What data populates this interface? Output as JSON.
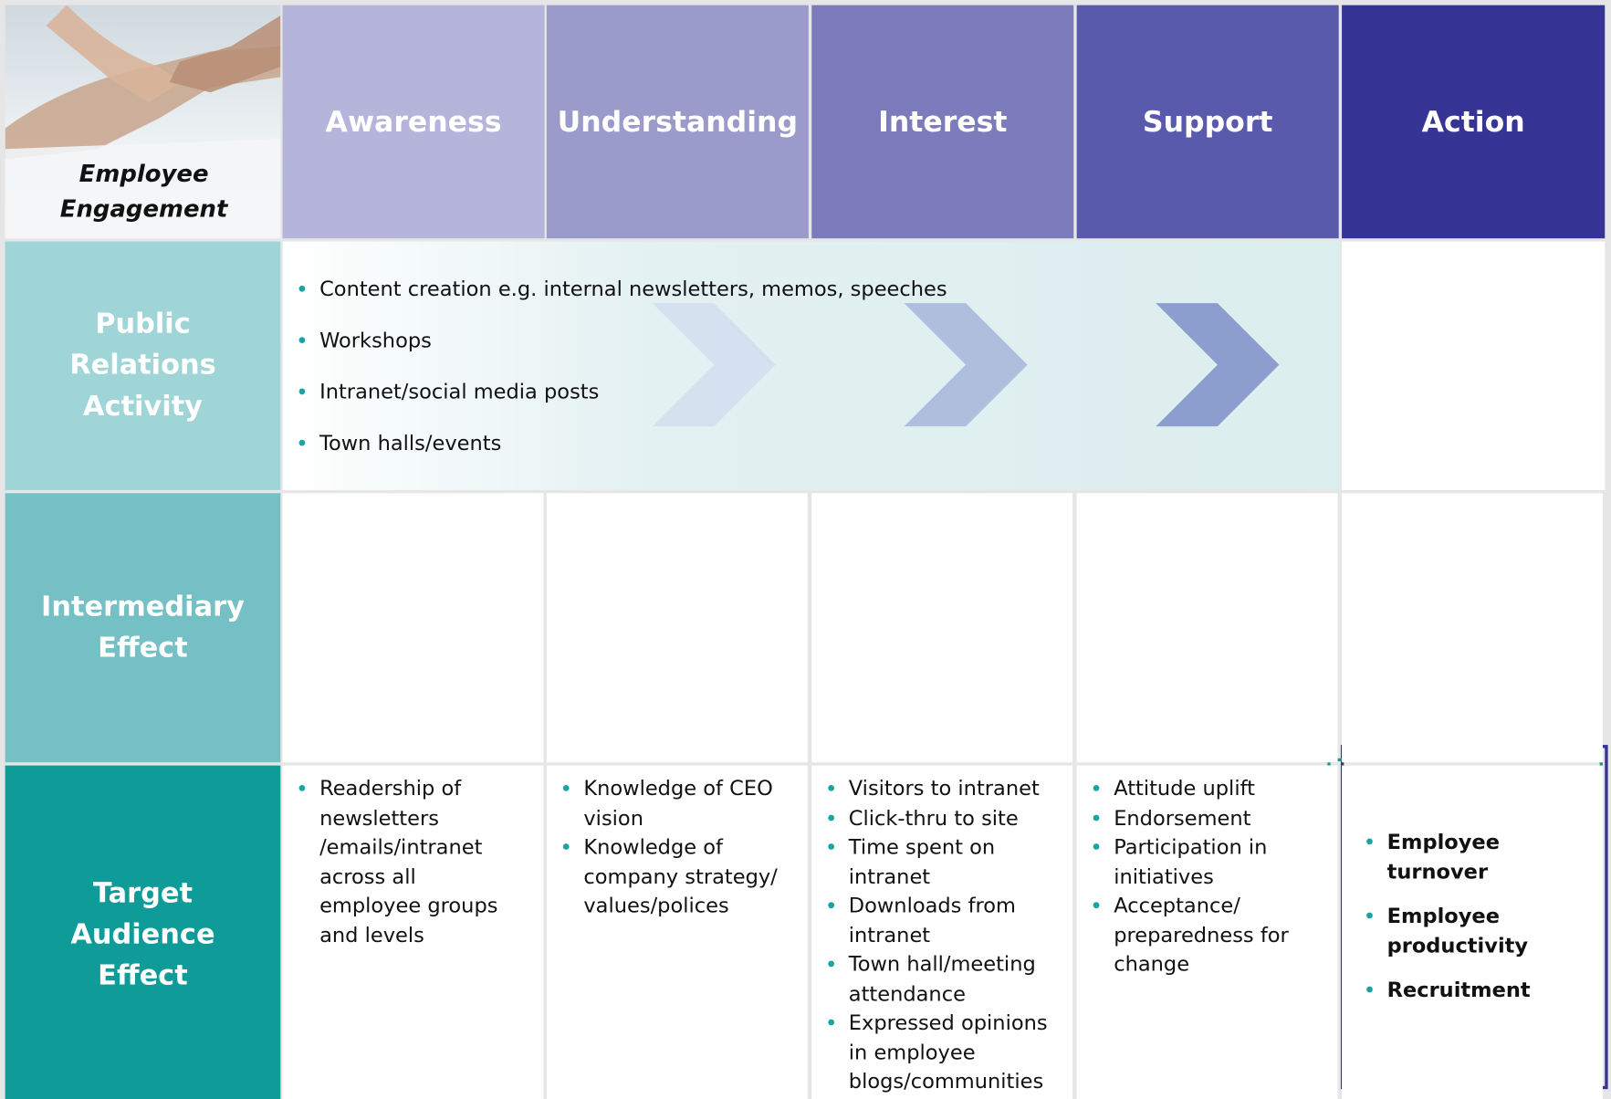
{
  "header": {
    "corner_label": "Employee Engagement",
    "stages": [
      "Awareness",
      "Understanding",
      "Interest",
      "Support",
      "Action"
    ]
  },
  "rows": [
    {
      "label": "Public Relations Activity",
      "items": [
        "Content creation e.g. internal newsletters, memos, speeches",
        "Workshops",
        "Intranet/social media posts",
        "Town halls/events"
      ]
    },
    {
      "label": "Intermediary Effect"
    },
    {
      "label": "Target Audience Effect",
      "cells": [
        [
          "Readership of newsletters /emails/intranet across all employee groups and levels"
        ],
        [
          "Knowledge of CEO vision",
          "Knowledge of company strategy/ values/polices"
        ],
        [
          "Visitors to intranet",
          "Click-thru to site",
          "Time spent on intranet",
          "Downloads from intranet",
          "Town hall/meeting attendance",
          "Expressed opinions in employee blogs/communities"
        ],
        [
          "Attitude uplift",
          "Endorsement",
          "Participation in initiatives",
          "Acceptance/ preparedness for change"
        ],
        [
          "Employee turnover",
          "Employee productivity",
          "Recruitment"
        ]
      ]
    }
  ]
}
